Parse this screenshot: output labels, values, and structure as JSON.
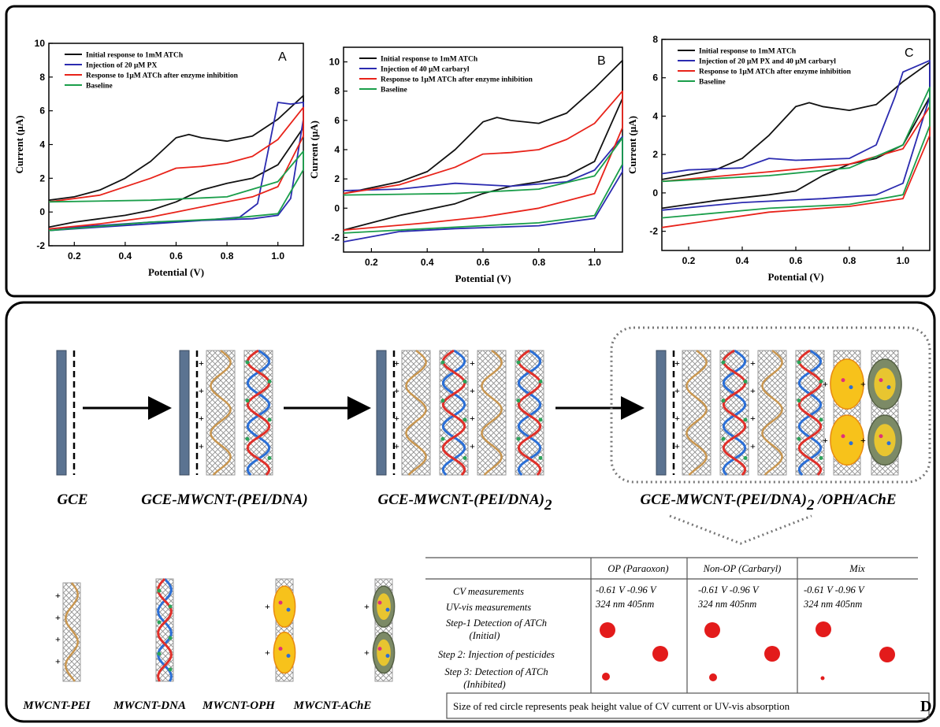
{
  "chart_data": [
    {
      "type": "line",
      "panel_label": "A",
      "x_label": "Potential (V)",
      "y_label": "Current (μA)",
      "xlim": [
        0.1,
        1.1
      ],
      "xticks": [
        0.2,
        0.4,
        0.6,
        0.8,
        {
          "value": 1.0,
          "label": "1.0"
        }
      ],
      "ylim": [
        -2,
        10
      ],
      "yticks": [
        -2,
        0,
        2,
        4,
        6,
        8,
        10
      ],
      "series": [
        {
          "name": "Initial response to 1mM ATCh",
          "color": "#111111",
          "x": [
            0.1,
            0.2,
            0.3,
            0.4,
            0.5,
            0.6,
            0.65,
            0.7,
            0.8,
            0.9,
            1.0,
            1.1,
            1.1,
            1.0,
            0.9,
            0.8,
            0.7,
            0.6,
            0.5,
            0.4,
            0.3,
            0.2,
            0.1
          ],
          "values": [
            0.7,
            0.9,
            1.3,
            2.0,
            3.0,
            4.4,
            4.6,
            4.4,
            4.2,
            4.5,
            5.5,
            6.9,
            5.0,
            2.8,
            2.0,
            1.7,
            1.3,
            0.6,
            0.1,
            -0.2,
            -0.4,
            -0.6,
            -0.9
          ]
        },
        {
          "name": "Injection of 20 μM  PX",
          "color": "#2b2bb0",
          "x": [
            0.1,
            0.3,
            0.5,
            0.7,
            0.85,
            0.92,
            0.96,
            1.0,
            1.05,
            1.1,
            1.1,
            1.05,
            1.0,
            0.9,
            0.7,
            0.5,
            0.3,
            0.1
          ],
          "values": [
            -1.0,
            -0.8,
            -0.6,
            -0.5,
            -0.3,
            0.5,
            3.5,
            6.5,
            6.4,
            6.5,
            5.5,
            0.8,
            -0.2,
            -0.4,
            -0.5,
            -0.7,
            -0.9,
            -1.1
          ]
        },
        {
          "name": "Response to 1μM ATCh after enzyme inhibition",
          "color": "#e8231a",
          "x": [
            0.1,
            0.3,
            0.5,
            0.6,
            0.7,
            0.8,
            0.9,
            1.0,
            1.1,
            1.1,
            1.0,
            0.9,
            0.8,
            0.7,
            0.6,
            0.5,
            0.3,
            0.1
          ],
          "values": [
            0.6,
            1.0,
            2.0,
            2.6,
            2.7,
            2.9,
            3.3,
            4.3,
            6.2,
            4.5,
            1.5,
            0.9,
            0.6,
            0.3,
            0.0,
            -0.3,
            -0.7,
            -1.0
          ]
        },
        {
          "name": "Baseline",
          "color": "#1a9e4a",
          "x": [
            0.1,
            0.5,
            0.8,
            1.0,
            1.1,
            1.1,
            1.0,
            0.8,
            0.5,
            0.1
          ],
          "values": [
            0.6,
            0.7,
            0.9,
            1.8,
            3.6,
            2.5,
            -0.1,
            -0.4,
            -0.6,
            -1.1
          ]
        }
      ]
    },
    {
      "type": "line",
      "panel_label": "B",
      "x_label": "Potential (V)",
      "y_label": "Current (μA)",
      "xlim": [
        0.1,
        1.1
      ],
      "xticks": [
        0.2,
        0.4,
        0.6,
        0.8,
        {
          "value": 1.0,
          "label": "1.0"
        }
      ],
      "ylim": [
        -3,
        11
      ],
      "yticks": [
        -2,
        0,
        2,
        4,
        6,
        8,
        10
      ],
      "series": [
        {
          "name": "Initial response to 1mM ATCh",
          "color": "#111111",
          "x": [
            0.1,
            0.3,
            0.4,
            0.5,
            0.6,
            0.65,
            0.7,
            0.8,
            0.9,
            1.0,
            1.1,
            1.1,
            1.0,
            0.9,
            0.8,
            0.7,
            0.6,
            0.5,
            0.3,
            0.1
          ],
          "values": [
            1.0,
            1.8,
            2.5,
            4.0,
            5.9,
            6.2,
            6.0,
            5.8,
            6.5,
            8.2,
            10.1,
            7.5,
            3.2,
            2.2,
            1.8,
            1.5,
            1.0,
            0.3,
            -0.5,
            -1.5
          ]
        },
        {
          "name": "Injection of 40 μM carbaryl",
          "color": "#2b2bb0",
          "x": [
            0.1,
            0.3,
            0.5,
            0.7,
            0.9,
            1.0,
            1.1,
            1.1,
            1.0,
            0.8,
            0.5,
            0.3,
            0.1
          ],
          "values": [
            1.2,
            1.3,
            1.7,
            1.5,
            1.8,
            2.6,
            4.9,
            2.5,
            -0.7,
            -1.2,
            -1.4,
            -1.6,
            -2.3
          ]
        },
        {
          "name": "Response to 1μM ATCh after enzyme inhibition",
          "color": "#e8231a",
          "x": [
            0.1,
            0.3,
            0.5,
            0.6,
            0.7,
            0.8,
            0.9,
            1.0,
            1.1,
            1.1,
            1.0,
            0.8,
            0.6,
            0.4,
            0.1
          ],
          "values": [
            1.0,
            1.6,
            2.8,
            3.7,
            3.8,
            4.0,
            4.7,
            5.8,
            8.0,
            5.5,
            1.0,
            0.0,
            -0.6,
            -1.0,
            -1.5
          ]
        },
        {
          "name": "Baseline",
          "color": "#1a9e4a",
          "x": [
            0.1,
            0.5,
            0.8,
            1.0,
            1.1,
            1.1,
            1.0,
            0.8,
            0.5,
            0.1
          ],
          "values": [
            0.9,
            1.0,
            1.3,
            2.2,
            4.8,
            3.0,
            -0.5,
            -1.0,
            -1.3,
            -1.7
          ]
        }
      ]
    },
    {
      "type": "line",
      "panel_label": "C",
      "x_label": "Potential (V)",
      "y_label": "Current (μA)",
      "xlim": [
        0.1,
        1.1
      ],
      "xticks": [
        0.2,
        0.4,
        0.6,
        0.8,
        {
          "value": 1.0,
          "label": "1.0"
        }
      ],
      "ylim": [
        -3,
        8
      ],
      "yticks": [
        -2,
        0,
        2,
        4,
        6,
        8
      ],
      "series": [
        {
          "name": "Initial response to 1mM ATCh",
          "color": "#111111",
          "x": [
            0.1,
            0.3,
            0.4,
            0.5,
            0.6,
            0.65,
            0.7,
            0.8,
            0.9,
            1.0,
            1.1,
            1.1,
            1.0,
            0.9,
            0.8,
            0.7,
            0.6,
            0.5,
            0.3,
            0.1
          ],
          "values": [
            0.7,
            1.2,
            1.8,
            3.0,
            4.5,
            4.7,
            4.5,
            4.3,
            4.6,
            5.8,
            6.8,
            5.0,
            2.5,
            1.8,
            1.5,
            0.9,
            0.1,
            -0.1,
            -0.4,
            -0.8
          ]
        },
        {
          "name": "Injection of 20 μM PX  and 40 μM carbaryl",
          "color": "#2b2bb0",
          "x": [
            0.1,
            0.2,
            0.4,
            0.5,
            0.6,
            0.8,
            0.9,
            0.97,
            1.0,
            1.1,
            1.1,
            1.0,
            0.9,
            0.7,
            0.4,
            0.1
          ],
          "values": [
            1.0,
            1.2,
            1.3,
            1.8,
            1.7,
            1.8,
            2.5,
            5.0,
            6.3,
            6.9,
            5.0,
            0.5,
            -0.1,
            -0.3,
            -0.5,
            -0.9
          ]
        },
        {
          "name": "Response to 1μM ATCh after enzyme inhibition",
          "color": "#e8231a",
          "x": [
            0.1,
            0.5,
            0.8,
            1.0,
            1.1,
            1.1,
            1.0,
            0.8,
            0.5,
            0.1
          ],
          "values": [
            0.6,
            1.1,
            1.5,
            2.3,
            4.5,
            3.0,
            -0.3,
            -0.7,
            -1.0,
            -1.8
          ]
        },
        {
          "name": "Baseline",
          "color": "#1a9e4a",
          "x": [
            0.1,
            0.5,
            0.8,
            1.0,
            1.1,
            1.1,
            1.0,
            0.8,
            0.5,
            0.1
          ],
          "values": [
            0.6,
            0.9,
            1.3,
            2.5,
            5.5,
            3.5,
            -0.1,
            -0.6,
            -0.8,
            -1.3
          ]
        }
      ]
    }
  ],
  "diagram": {
    "stages": [
      {
        "label": "GCE"
      },
      {
        "label": "GCE-MWCNT-(PEI/DNA)"
      },
      {
        "label": "GCE-MWCNT-(PEI/DNA)",
        "sub": "2"
      },
      {
        "label": "GCE-MWCNT-(PEI/DNA)",
        "sub": "2",
        "suffix": " /OPH/AChE"
      }
    ],
    "components": [
      "MWCNT-PEI",
      "MWCNT-DNA",
      "MWCNT-OPH",
      "MWCNT-AChE"
    ],
    "table": {
      "header": [
        "OP (Paraoxon)",
        "Non-OP (Carbaryl)",
        "Mix"
      ],
      "row_labels": [
        "CV measurements",
        "UV-vis measurements",
        "Step-1 Detection of ATCh",
        "(Initial)",
        "Step 2: Injection of pesticides",
        "Step 3: Detection of ATCh",
        "(Inhibited)"
      ],
      "cells": [
        [
          "-0.61 V -0.96 V",
          "324 nm  405nm"
        ],
        [
          "-0.61 V -0.96 V",
          "324 nm  405nm"
        ],
        [
          "-0.61 V -0.96 V",
          "324 nm  405nm"
        ]
      ]
    },
    "caption": "Size of red circle represents peak height value of CV current or UV-vis absorption",
    "panel_label": "D"
  }
}
